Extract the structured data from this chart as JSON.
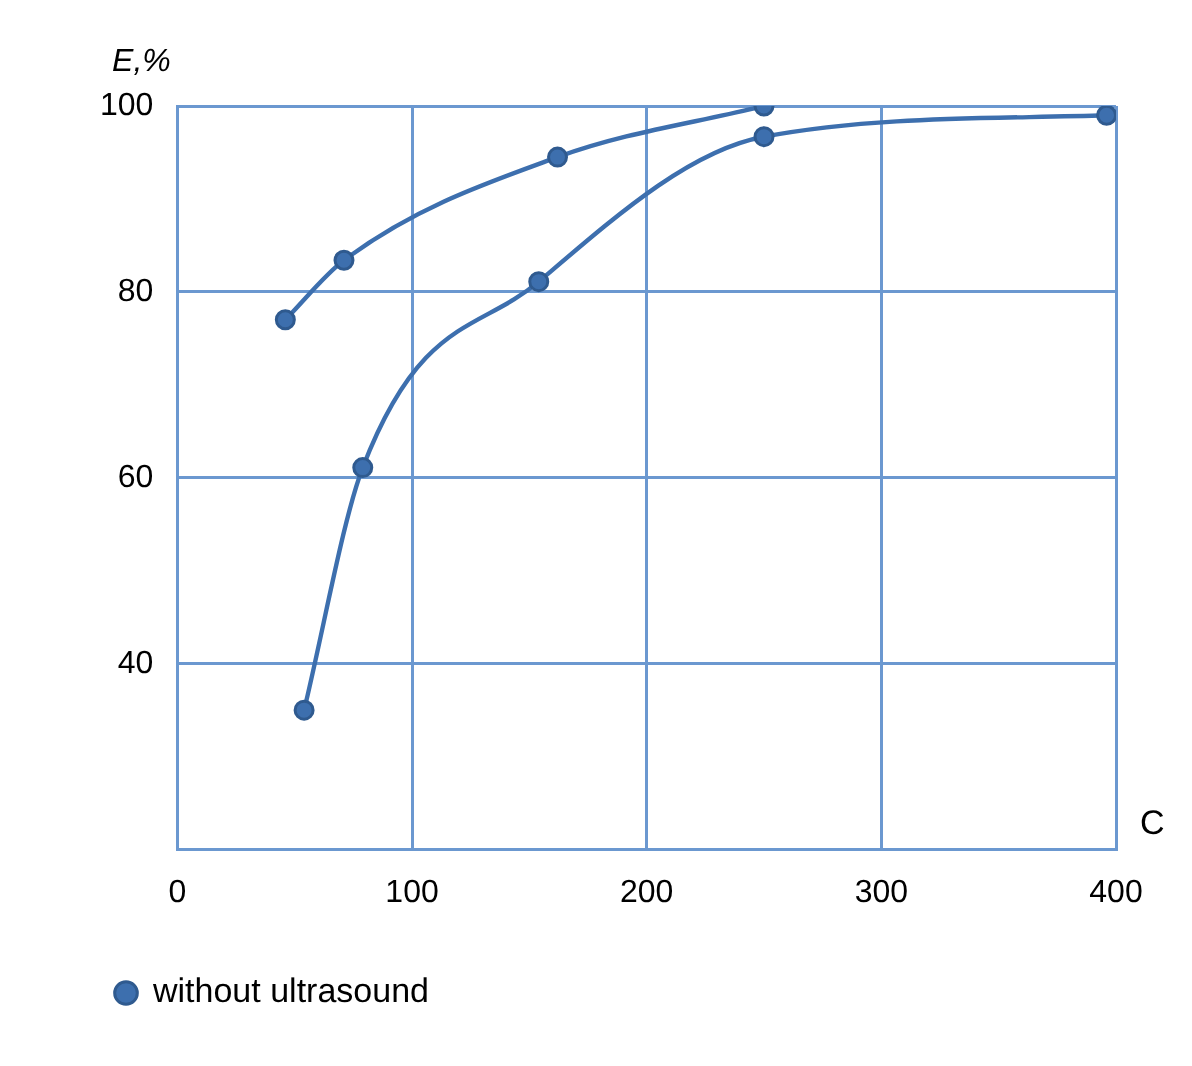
{
  "chart_data": {
    "type": "line",
    "xlabel": "C",
    "ylabel": "E,%",
    "xlim": [
      0,
      400
    ],
    "xticks": [
      0,
      100,
      200,
      300,
      400
    ],
    "ylim": [
      20,
      100
    ],
    "yticks": [
      {
        "value": 20,
        "label": null
      },
      40,
      60,
      80,
      100
    ],
    "grid": true,
    "legend": "bottom left",
    "marker": "circle",
    "line_style": "solid",
    "series": [
      {
        "name": "without ultrasound",
        "color": "#3d6fae",
        "x": [
          46,
          71,
          162,
          250
        ],
        "values": [
          77,
          83.4,
          94.5,
          100
        ]
      },
      {
        "color": "#3d6fae",
        "x": [
          54,
          79,
          154,
          250,
          396
        ],
        "values": [
          35,
          61.1,
          81.1,
          96.7,
          99
        ]
      }
    ]
  }
}
